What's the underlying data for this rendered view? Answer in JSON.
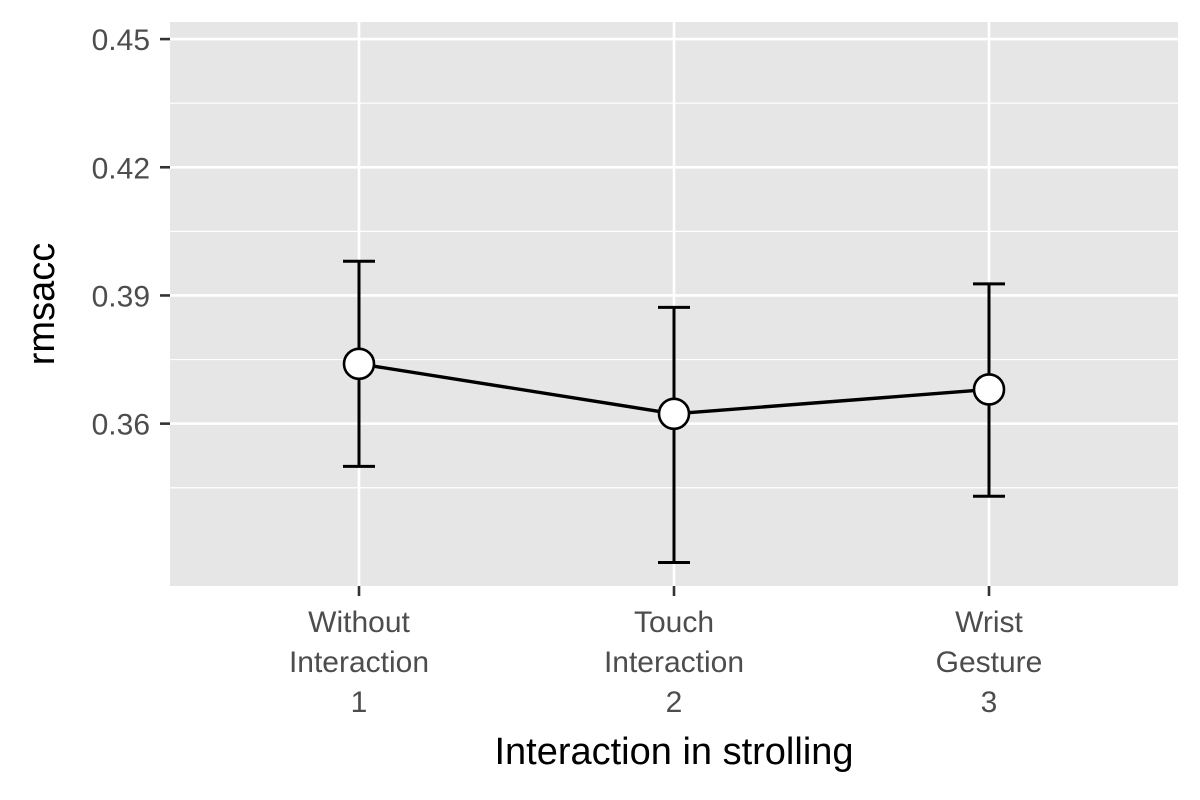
{
  "chart_data": {
    "type": "line",
    "xlabel": "Interaction in strolling",
    "ylabel": "rmsacc",
    "categories": [
      [
        "Without",
        "Interaction",
        "1"
      ],
      [
        "Touch",
        "Interaction",
        "2"
      ],
      [
        "Wrist",
        "Gesture",
        "3"
      ]
    ],
    "series": [
      {
        "values": [
          0.374,
          0.3623,
          0.368
        ],
        "error_low": [
          0.35,
          0.3275,
          0.343
        ],
        "error_high": [
          0.398,
          0.3872,
          0.3927
        ]
      }
    ],
    "ylim": [
      0.322,
      0.454
    ],
    "yticks": [
      0.36,
      0.39,
      0.42,
      0.45
    ],
    "ytick_labels": [
      "0.36",
      "0.39",
      "0.42",
      "0.45"
    ],
    "grid": true,
    "legend": "none",
    "colors": {
      "panel": "#e6e6e6",
      "grid": "#ffffff",
      "line": "#000000",
      "point_fill": "#ffffff"
    }
  }
}
